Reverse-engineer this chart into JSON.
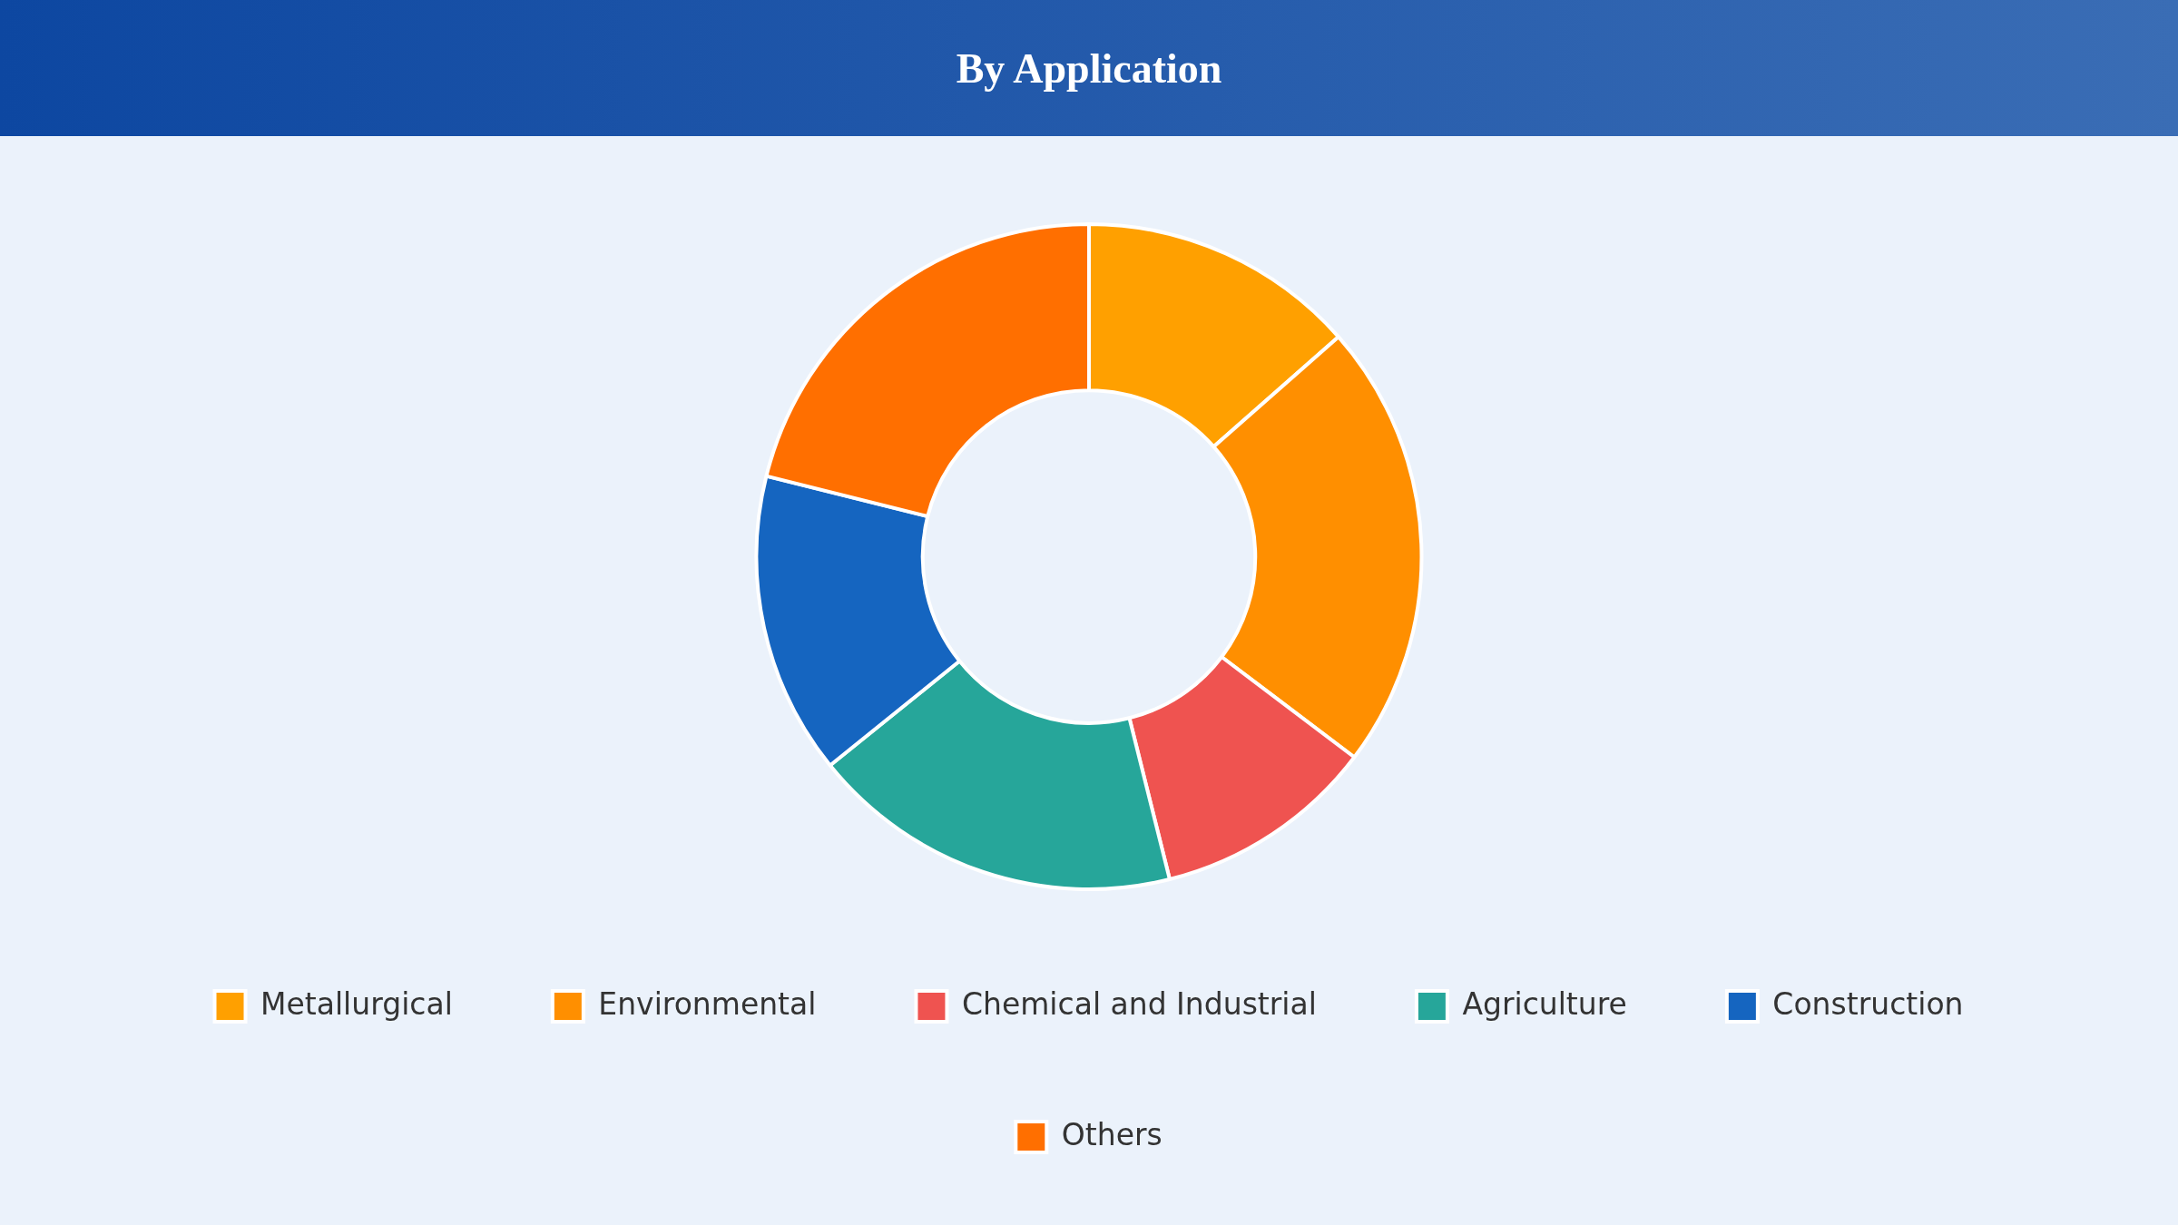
{
  "chart_data": {
    "type": "donut",
    "title": "By Application",
    "categories": [
      "Metallurgical",
      "Environmental",
      "Chemical and Industrial",
      "Agriculture",
      "Construction",
      "Others"
    ],
    "values": [
      13.5,
      21.8,
      10.8,
      18.1,
      14.7,
      21.1
    ],
    "colors": [
      "#ffa000",
      "#ff8f00",
      "#ef5350",
      "#26a69a",
      "#1565c0",
      "#ff6f00"
    ],
    "legend": "bottom"
  }
}
